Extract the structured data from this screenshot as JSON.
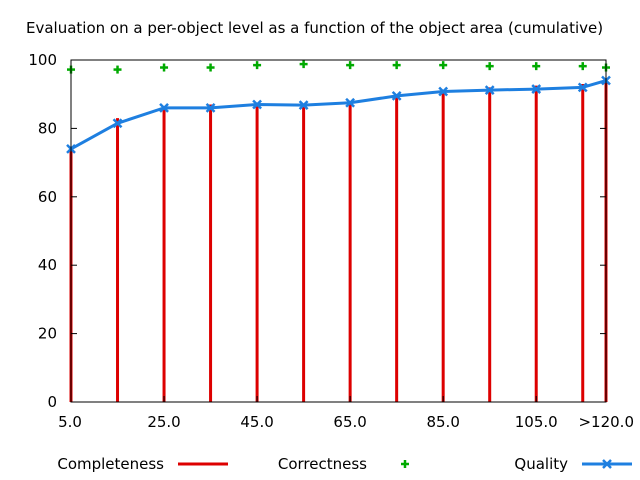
{
  "chart_data": {
    "type": "line",
    "title": "Evaluation on a per-object level as a function of the object area (cumulative)",
    "xlabel": "",
    "ylabel": "",
    "ylim": [
      0,
      100
    ],
    "yticks": [
      "0",
      "20",
      "40",
      "60",
      "80",
      "100"
    ],
    "x": [
      5,
      15,
      25,
      35,
      45,
      55,
      65,
      75,
      85,
      95,
      105,
      115,
      120
    ],
    "xlim": [
      5,
      120
    ],
    "xticks": [
      {
        "value": 5,
        "label": "5.0"
      },
      {
        "value": 25,
        "label": "25.0"
      },
      {
        "value": 45,
        "label": "45.0"
      },
      {
        "value": 65,
        "label": "65.0"
      },
      {
        "value": 85,
        "label": "85.0"
      },
      {
        "value": 105,
        "label": "105.0"
      },
      {
        "value": 120,
        "label": ">120.0"
      }
    ],
    "grid": false,
    "legend_position": "bottom",
    "series": [
      {
        "name": "Completeness",
        "style": "impulses",
        "color": "#dd0000",
        "values": [
          74,
          83,
          86.5,
          87,
          87.5,
          87,
          88,
          90,
          91,
          92,
          92.5,
          93,
          94.5
        ]
      },
      {
        "name": "Correctness",
        "style": "points",
        "color": "#00aa00",
        "values": [
          97.2,
          97.2,
          97.8,
          97.8,
          98.5,
          98.8,
          98.5,
          98.5,
          98.5,
          98.2,
          98.2,
          98.2,
          97.8
        ]
      },
      {
        "name": "Quality",
        "style": "linespoints",
        "color": "#1e7fe0",
        "values": [
          74,
          81.5,
          86,
          86,
          87,
          86.8,
          87.5,
          89.5,
          90.8,
          91.2,
          91.5,
          92,
          94
        ]
      }
    ]
  }
}
